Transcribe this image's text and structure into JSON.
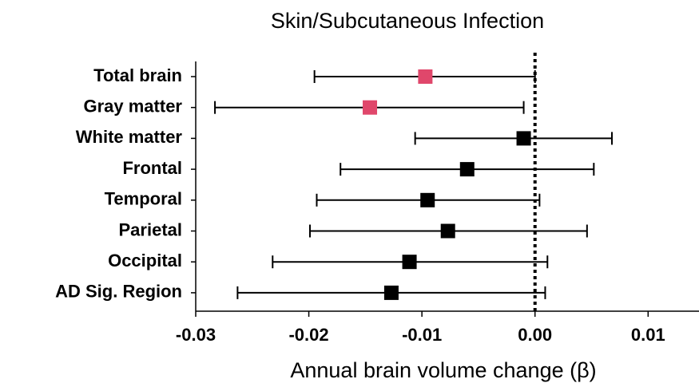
{
  "chart_data": {
    "type": "forest",
    "title": "Skin/Subcutaneous Infection",
    "x_label": "Annual brain volume change (β)",
    "categories": [
      "Total brain",
      "Gray matter",
      "White matter",
      "Frontal",
      "Temporal",
      "Parietal",
      "Occipital",
      "AD Sig. Region"
    ],
    "values": [
      -0.0097,
      -0.0146,
      -0.001,
      -0.006,
      -0.0095,
      -0.0077,
      -0.0111,
      -0.0127
    ],
    "lower": [
      -0.0195,
      -0.0283,
      -0.0106,
      -0.0172,
      -0.0193,
      -0.0199,
      -0.0232,
      -0.0263
    ],
    "upper": [
      0.0,
      -0.001,
      0.0068,
      0.0052,
      0.0004,
      0.0046,
      0.0011,
      0.0009
    ],
    "colors": [
      "#e0476b",
      "#e0476b",
      "#000000",
      "#000000",
      "#000000",
      "#000000",
      "#000000",
      "#000000"
    ],
    "xlim": [
      -0.03,
      0.0145
    ],
    "xticks": [
      -0.03,
      -0.02,
      -0.01,
      {
        "value": 0,
        "label": "0.00"
      },
      0.01
    ],
    "reference_line": 0
  }
}
